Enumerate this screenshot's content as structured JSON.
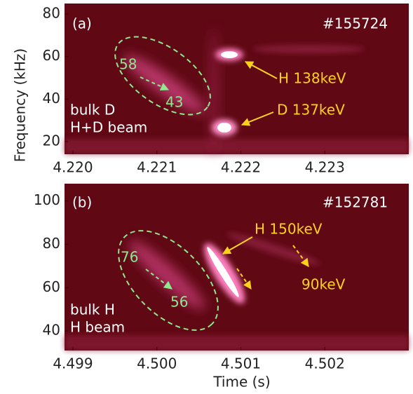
{
  "chart_data": [
    {
      "type": "spectrogram",
      "ylabel": "Frequency (kHz)",
      "xlim": [
        4.2199,
        4.224
      ],
      "ylim": [
        14,
        85
      ],
      "xticks": [
        {
          "value": 4.22,
          "label": "4.220"
        },
        4.221,
        4.222,
        4.223
      ],
      "yticks": [
        20,
        40,
        60,
        80
      ],
      "annotations": [
        "(a)",
        "#155724",
        "58",
        "43",
        "bulk D",
        "H+D beam",
        "H 138keV",
        "D 137keV"
      ]
    },
    {
      "type": "spectrogram",
      "xlabel": "Time (s)",
      "xlim": [
        4.4989,
        4.503
      ],
      "ylim": [
        31,
        108
      ],
      "xticks": [
        4.499,
        {
          "value": 4.5,
          "label": "4.500"
        },
        4.501,
        4.502
      ],
      "yticks": [
        40,
        60,
        80,
        100
      ],
      "annotations": [
        "(b)",
        "#152781",
        "76",
        "56",
        "H 150keV",
        "90keV",
        "bulk H",
        "H beam"
      ]
    }
  ]
}
